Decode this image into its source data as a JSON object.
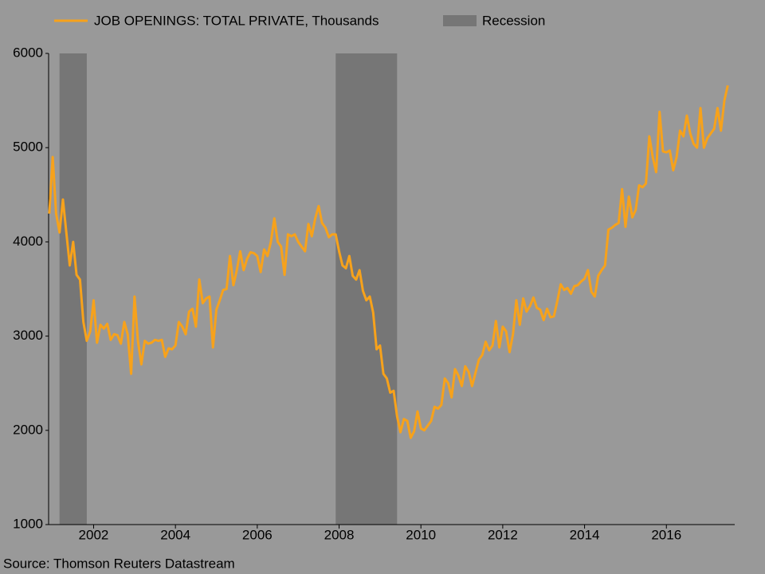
{
  "chart_data": {
    "type": "line",
    "series": [
      {
        "name": "JOB OPENINGS: TOTAL PRIVATE, Thousands",
        "color": "#f7a21b",
        "x": [
          2000.917,
          2001,
          2001.083,
          2001.167,
          2001.25,
          2001.333,
          2001.417,
          2001.5,
          2001.583,
          2001.667,
          2001.75,
          2001.833,
          2001.917,
          2002,
          2002.083,
          2002.167,
          2002.25,
          2002.333,
          2002.417,
          2002.5,
          2002.583,
          2002.667,
          2002.75,
          2002.833,
          2002.917,
          2003,
          2003.083,
          2003.167,
          2003.25,
          2003.333,
          2003.417,
          2003.5,
          2003.583,
          2003.667,
          2003.75,
          2003.833,
          2003.917,
          2004,
          2004.083,
          2004.167,
          2004.25,
          2004.333,
          2004.417,
          2004.5,
          2004.583,
          2004.667,
          2004.75,
          2004.833,
          2004.917,
          2005,
          2005.083,
          2005.167,
          2005.25,
          2005.333,
          2005.417,
          2005.5,
          2005.583,
          2005.667,
          2005.75,
          2005.833,
          2005.917,
          2006,
          2006.083,
          2006.167,
          2006.25,
          2006.333,
          2006.417,
          2006.5,
          2006.583,
          2006.667,
          2006.75,
          2006.833,
          2006.917,
          2007,
          2007.083,
          2007.167,
          2007.25,
          2007.333,
          2007.417,
          2007.5,
          2007.583,
          2007.667,
          2007.75,
          2007.833,
          2007.917,
          2008,
          2008.083,
          2008.167,
          2008.25,
          2008.333,
          2008.417,
          2008.5,
          2008.583,
          2008.667,
          2008.75,
          2008.833,
          2008.917,
          2009,
          2009.083,
          2009.167,
          2009.25,
          2009.333,
          2009.417,
          2009.5,
          2009.583,
          2009.667,
          2009.75,
          2009.833,
          2009.917,
          2010,
          2010.083,
          2010.167,
          2010.25,
          2010.333,
          2010.417,
          2010.5,
          2010.583,
          2010.667,
          2010.75,
          2010.833,
          2010.917,
          2011,
          2011.083,
          2011.167,
          2011.25,
          2011.333,
          2011.417,
          2011.5,
          2011.583,
          2011.667,
          2011.75,
          2011.833,
          2011.917,
          2012,
          2012.083,
          2012.167,
          2012.25,
          2012.333,
          2012.417,
          2012.5,
          2012.583,
          2012.667,
          2012.75,
          2012.833,
          2012.917,
          2013,
          2013.083,
          2013.167,
          2013.25,
          2013.333,
          2013.417,
          2013.5,
          2013.583,
          2013.667,
          2013.75,
          2013.833,
          2013.917,
          2014,
          2014.083,
          2014.167,
          2014.25,
          2014.333,
          2014.417,
          2014.5,
          2014.583,
          2014.667,
          2014.75,
          2014.833,
          2014.917,
          2015,
          2015.083,
          2015.167,
          2015.25,
          2015.333,
          2015.417,
          2015.5,
          2015.583,
          2015.667,
          2015.75,
          2015.833,
          2015.917,
          2016,
          2016.083,
          2016.167,
          2016.25,
          2016.333,
          2016.417,
          2016.5,
          2016.583,
          2016.667,
          2016.75,
          2016.833,
          2016.917,
          2017,
          2017.083,
          2017.167,
          2017.25,
          2017.333,
          2017.417,
          2017.5
        ],
        "values": [
          4300,
          4900,
          4300,
          4100,
          4450,
          4100,
          3750,
          4000,
          3650,
          3600,
          3150,
          2950,
          3050,
          3380,
          2930,
          3120,
          3080,
          3130,
          2960,
          3020,
          3010,
          2920,
          3150,
          3020,
          2600,
          3420,
          2950,
          2700,
          2950,
          2920,
          2930,
          2960,
          2950,
          2960,
          2780,
          2870,
          2860,
          2900,
          3150,
          3100,
          3020,
          3260,
          3290,
          3100,
          3600,
          3350,
          3400,
          3420,
          2880,
          3280,
          3380,
          3490,
          3500,
          3850,
          3540,
          3700,
          3900,
          3700,
          3820,
          3890,
          3880,
          3850,
          3680,
          3920,
          3850,
          4000,
          4250,
          4000,
          3950,
          3650,
          4080,
          4060,
          4080,
          4000,
          3950,
          3900,
          4190,
          4060,
          4250,
          4380,
          4200,
          4150,
          4050,
          4080,
          4080,
          3900,
          3750,
          3720,
          3850,
          3640,
          3600,
          3700,
          3480,
          3380,
          3420,
          3250,
          2860,
          2900,
          2600,
          2550,
          2400,
          2420,
          2150,
          1980,
          2120,
          2100,
          1920,
          1990,
          2200,
          2020,
          2000,
          2050,
          2100,
          2250,
          2230,
          2270,
          2550,
          2500,
          2350,
          2650,
          2580,
          2470,
          2680,
          2620,
          2470,
          2610,
          2750,
          2800,
          2940,
          2850,
          2900,
          3160,
          2880,
          3100,
          3050,
          2830,
          3020,
          3380,
          3120,
          3400,
          3260,
          3320,
          3410,
          3300,
          3280,
          3170,
          3290,
          3200,
          3210,
          3370,
          3550,
          3490,
          3510,
          3450,
          3530,
          3540,
          3580,
          3610,
          3700,
          3470,
          3420,
          3640,
          3700,
          3750,
          4130,
          4150,
          4180,
          4200,
          4560,
          4160,
          4480,
          4260,
          4340,
          4600,
          4580,
          4620,
          5120,
          4900,
          4740,
          5380,
          4960,
          4950,
          4970,
          4760,
          4900,
          5180,
          5120,
          5340,
          5150,
          5040,
          5000,
          5420,
          5000,
          5100,
          5150,
          5200,
          5420,
          5180,
          5500,
          5660
        ]
      }
    ],
    "shaded": {
      "name": "Recession",
      "color": "#767676",
      "spans": [
        {
          "start": 2001.167,
          "end": 2001.833
        },
        {
          "start": 2007.917,
          "end": 2009.417
        }
      ]
    },
    "xlim": [
      2000.9,
      2017.67
    ],
    "xticks": [
      2002,
      2004,
      2006,
      2008,
      2010,
      2012,
      2014,
      2016
    ],
    "ylim": [
      1000,
      6000
    ],
    "yticks": [
      1000,
      2000,
      3000,
      4000,
      5000,
      6000
    ],
    "source": "Source: Thomson Reuters Datastream"
  }
}
